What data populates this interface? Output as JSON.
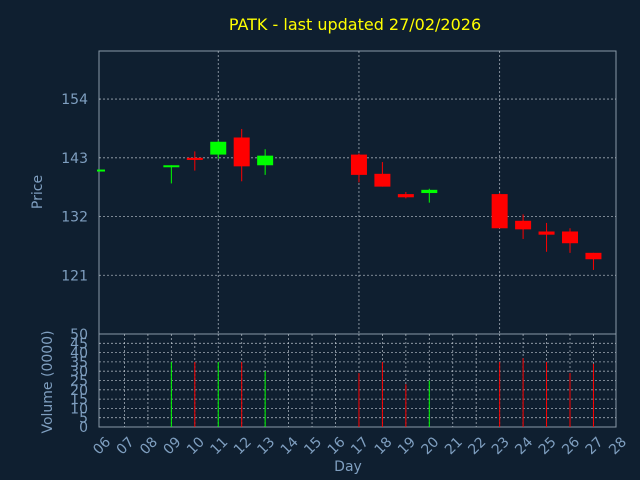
{
  "colors": {
    "background": "#0f1f30",
    "title": "#ffff00",
    "axis_text": "#7f9fc0",
    "up": "#00ff00",
    "down": "#ff0000",
    "grid": "#d0d8e0"
  },
  "chart_data": {
    "type": "candlestick",
    "title": "PATK - last updated 27/02/2026",
    "xlabel": "Day",
    "ylabel": "Price",
    "volume_label": "Volume (0000)",
    "x_ticks": [
      "06",
      "07",
      "08",
      "09",
      "10",
      "11",
      "12",
      "13",
      "14",
      "15",
      "16",
      "17",
      "18",
      "19",
      "20",
      "21",
      "22",
      "23",
      "24",
      "25",
      "26",
      "27",
      "28"
    ],
    "ylim": [
      110,
      163
    ],
    "y_ticks": [
      121,
      132,
      143,
      154
    ],
    "volume_ylim": [
      0,
      50
    ],
    "volume_ticks": [
      0,
      5,
      10,
      15,
      20,
      25,
      30,
      35,
      40,
      45,
      50
    ],
    "grid": true,
    "candles": [
      {
        "day": "06",
        "open": 140.8,
        "close": 140.8,
        "high": 140.8,
        "low": 140.8,
        "volume": null
      },
      {
        "day": "09",
        "open": 141.6,
        "close": 141.6,
        "high": 141.6,
        "low": 138.2,
        "volume": 35
      },
      {
        "day": "10",
        "open": 143.0,
        "close": 142.6,
        "high": 144.2,
        "low": 140.6,
        "volume": 35
      },
      {
        "day": "11",
        "open": 143.6,
        "close": 146.0,
        "high": 146.2,
        "low": 142.8,
        "volume": 35
      },
      {
        "day": "12",
        "open": 146.8,
        "close": 141.4,
        "high": 148.4,
        "low": 138.6,
        "volume": 35
      },
      {
        "day": "13",
        "open": 141.6,
        "close": 143.4,
        "high": 144.6,
        "low": 139.8,
        "volume": 30
      },
      {
        "day": "17",
        "open": 143.6,
        "close": 139.8,
        "high": 143.8,
        "low": 138.4,
        "volume": 29
      },
      {
        "day": "18",
        "open": 140.0,
        "close": 137.6,
        "high": 142.2,
        "low": 137.6,
        "volume": 35
      },
      {
        "day": "19",
        "open": 136.2,
        "close": 135.6,
        "high": 136.6,
        "low": 135.4,
        "volume": 23
      },
      {
        "day": "20",
        "open": 136.4,
        "close": 137.0,
        "high": 137.2,
        "low": 134.6,
        "volume": 25
      },
      {
        "day": "23",
        "open": 136.2,
        "close": 129.8,
        "high": 136.4,
        "low": 129.8,
        "volume": 35
      },
      {
        "day": "24",
        "open": 131.2,
        "close": 129.6,
        "high": 132.4,
        "low": 127.8,
        "volume": 37
      },
      {
        "day": "25",
        "open": 129.2,
        "close": 128.6,
        "high": 130.8,
        "low": 125.4,
        "volume": 35
      },
      {
        "day": "26",
        "open": 129.2,
        "close": 127.0,
        "high": 129.8,
        "low": 125.2,
        "volume": 29
      },
      {
        "day": "27",
        "open": 125.2,
        "close": 124.0,
        "high": 125.2,
        "low": 122.0,
        "volume": 34
      }
    ]
  }
}
